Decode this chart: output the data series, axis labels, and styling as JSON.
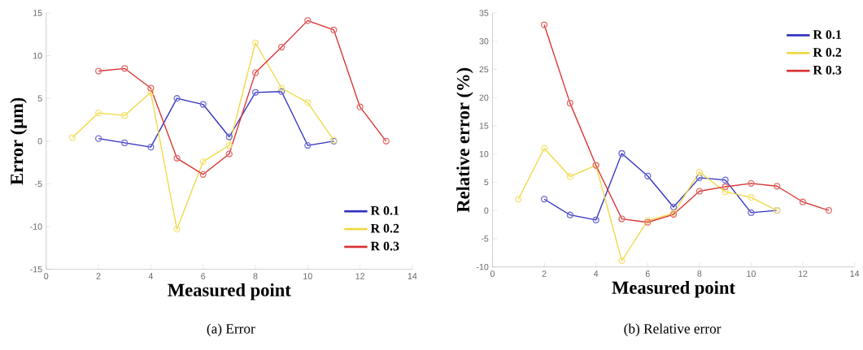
{
  "chart_data": [
    {
      "type": "line",
      "xlabel": "Measured point",
      "ylabel": "Error (μm)",
      "annotations": [
        "(a) Error"
      ],
      "xlim": [
        0,
        14
      ],
      "ylim": [
        -15,
        15
      ],
      "xticks": [
        0,
        2,
        4,
        6,
        8,
        10,
        12,
        14
      ],
      "yticks": [
        -15,
        -10,
        -5,
        0,
        5,
        10,
        15
      ],
      "grid": false,
      "legend": "bottom right",
      "marker": "circle",
      "series": [
        {
          "name": "R 0.1",
          "color": "#3030c0",
          "x": [
            2,
            3,
            4,
            5,
            6,
            7,
            8,
            9,
            10,
            11
          ],
          "values": [
            0.3,
            -0.2,
            -0.7,
            5.0,
            4.3,
            0.5,
            5.7,
            5.8,
            -0.5,
            0
          ]
        },
        {
          "name": "R 0.2",
          "color": "#f0d840",
          "x": [
            1,
            2,
            3,
            4,
            5,
            6,
            7,
            8,
            9,
            10,
            11
          ],
          "values": [
            0.4,
            3.3,
            3.0,
            5.7,
            -10.3,
            -2.4,
            -0.5,
            11.5,
            6.2,
            4.5,
            0.1
          ]
        },
        {
          "name": "R 0.3",
          "color": "#d83030",
          "x": [
            2,
            3,
            4,
            5,
            6,
            7,
            8,
            9,
            10,
            11,
            12,
            13
          ],
          "values": [
            8.2,
            8.5,
            6.2,
            -2.0,
            -3.9,
            -1.5,
            8.0,
            11.0,
            14.1,
            13.0,
            4.0,
            0
          ]
        }
      ]
    },
    {
      "type": "line",
      "xlabel": "Measured point",
      "ylabel": "Relative error (%)",
      "annotations": [
        "(b) Relative error"
      ],
      "xlim": [
        0,
        14
      ],
      "ylim": [
        -10,
        35
      ],
      "xticks": [
        0,
        2,
        4,
        6,
        8,
        10,
        12,
        14
      ],
      "yticks": [
        -10,
        -5,
        0,
        5,
        10,
        15,
        20,
        25,
        30,
        35
      ],
      "grid": false,
      "legend": "top right",
      "marker": "circle",
      "series": [
        {
          "name": "R 0.1",
          "color": "#3030c0",
          "x": [
            2,
            3,
            4,
            5,
            6,
            7,
            8,
            9,
            10,
            11
          ],
          "values": [
            2.0,
            -0.8,
            -1.7,
            10.1,
            6.1,
            0.6,
            5.8,
            5.4,
            -0.4,
            0
          ]
        },
        {
          "name": "R 0.2",
          "color": "#f0d840",
          "x": [
            1,
            2,
            3,
            4,
            5,
            6,
            7,
            8,
            9,
            10,
            11
          ],
          "values": [
            2.0,
            11.0,
            6.0,
            8.0,
            -8.9,
            -1.8,
            -0.5,
            6.8,
            3.3,
            2.3,
            0
          ]
        },
        {
          "name": "R 0.3",
          "color": "#d83030",
          "x": [
            2,
            3,
            4,
            5,
            6,
            7,
            8,
            9,
            10,
            11,
            12,
            13
          ],
          "values": [
            32.9,
            19.0,
            8.0,
            -1.5,
            -2.1,
            -0.7,
            3.4,
            4.2,
            4.8,
            4.3,
            1.5,
            0
          ]
        }
      ]
    }
  ]
}
